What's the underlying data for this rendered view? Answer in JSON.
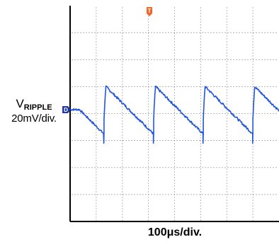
{
  "chart_data": {
    "type": "line",
    "title": "",
    "trace_label": {
      "main": "V",
      "subscript": "RIPPLE"
    },
    "vertical_scale": "20mV/div.",
    "horizontal_scale": "100μs/div.",
    "grid": true,
    "grid_divisions": {
      "x": 8,
      "y": 8
    },
    "trigger_marker": "T",
    "channel_marker": "D",
    "colors": {
      "trace": "#2255dd",
      "trigger": "#f26522",
      "channel": "#1f3aa8",
      "axis": "#000000",
      "grid": "#555555"
    },
    "ylim": [
      -80,
      80
    ],
    "xlim": [
      0,
      800
    ],
    "series": [
      {
        "x": [
          0,
          1,
          5,
          11,
          20,
          36,
          63,
          72,
          107,
          116,
          151,
          160,
          195,
          200,
          250,
          281,
          291,
          300
        ],
        "y": [
          0,
          0,
          0,
          0,
          0,
          0,
          0,
          0,
          0,
          0,
          0,
          0,
          0,
          0,
          0,
          0,
          0,
          0
        ]
      }
    ],
    "waveform": {
      "shape": "sawtooth",
      "period_us": 190,
      "first_peak_us": 137,
      "peak_mV": 20,
      "trough_mV": -15,
      "rise_us": 8,
      "undershoot_mV": -22
    }
  }
}
